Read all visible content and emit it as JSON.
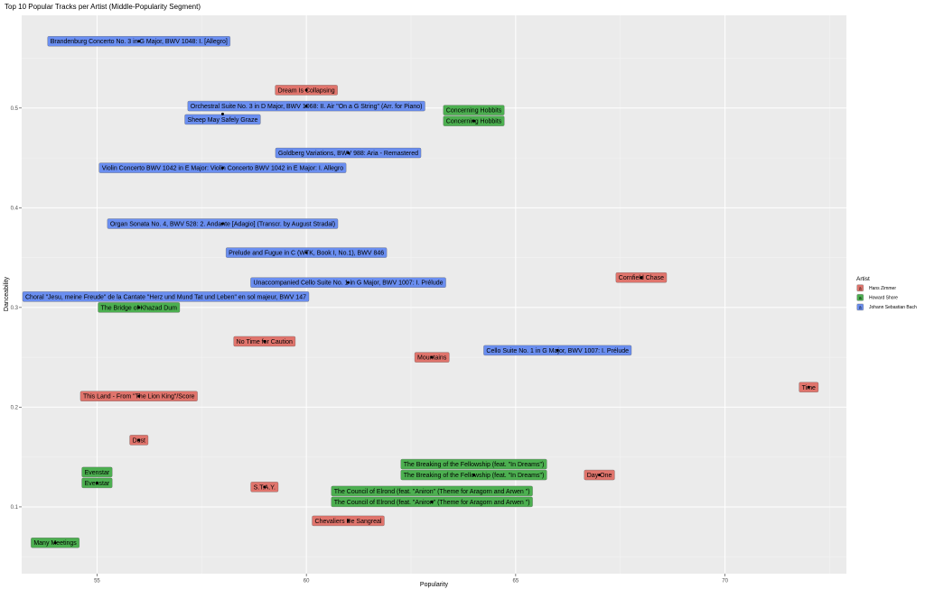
{
  "chart_data": {
    "type": "scatter",
    "title": "Top 10 Popular Tracks per Artist (Middle-Popularity Segment)",
    "xlabel": "Popularity",
    "ylabel": "Danceability",
    "xlim": [
      53.2,
      72.9
    ],
    "ylim": [
      0.033,
      0.593
    ],
    "xticks": [
      55,
      60,
      65,
      70
    ],
    "yticks": [
      0.1,
      0.2,
      0.3,
      0.4,
      0.5
    ],
    "grid": true,
    "legend": {
      "title": "Artist",
      "position": "right",
      "key_glyph": "a",
      "entries": [
        {
          "name": "Hans Zimmer",
          "color": "#e0746c"
        },
        {
          "name": "Howard Shore",
          "color": "#4caf50"
        },
        {
          "name": "Johann Sebastian Bach",
          "color": "#6a8ef0"
        }
      ]
    },
    "series": [
      {
        "name": "Hans Zimmer",
        "points": [
          {
            "x": 60,
            "y": 0.518,
            "label": "Dream Is Collapsing"
          },
          {
            "x": 68,
            "y": 0.33,
            "label": "Cornfield Chase"
          },
          {
            "x": 59,
            "y": 0.266,
            "label": "No Time for Caution"
          },
          {
            "x": 63,
            "y": 0.25,
            "label": "Mountains"
          },
          {
            "x": 56,
            "y": 0.211,
            "label": "This Land - From \"The Lion King\"/Score"
          },
          {
            "x": 72,
            "y": 0.22,
            "label": "Time"
          },
          {
            "x": 56,
            "y": 0.167,
            "label": "Dust"
          },
          {
            "x": 67,
            "y": 0.132,
            "label": "Day One"
          },
          {
            "x": 59,
            "y": 0.12,
            "label": "S.T.A.Y."
          },
          {
            "x": 61,
            "y": 0.086,
            "label": "Chevaliers De Sangreal"
          }
        ]
      },
      {
        "name": "Howard Shore",
        "points": [
          {
            "x": 64,
            "y": 0.487,
            "label": "Concerning Hobbits"
          },
          {
            "x": 64,
            "y": 0.487,
            "label": "Concerning Hobbits"
          },
          {
            "x": 56,
            "y": 0.3,
            "label": "The Bridge of Khazad Dum"
          },
          {
            "x": 55,
            "y": 0.124,
            "label": "Evenstar"
          },
          {
            "x": 55,
            "y": 0.124,
            "label": "Evenstar"
          },
          {
            "x": 64,
            "y": 0.132,
            "label": "The Breaking of the Fellowship (feat. \"In Dreams\")"
          },
          {
            "x": 64,
            "y": 0.132,
            "label": "The Breaking of the Fellowship (feat. \"In Dreams\")"
          },
          {
            "x": 63,
            "y": 0.105,
            "label": "The Council of Elrond (feat. \"Aniron\" (Theme for Aragorn and Arwen \")"
          },
          {
            "x": 63,
            "y": 0.105,
            "label": "The Council of Elrond (feat. \"Aniron\" (Theme for Aragorn and Arwen \")"
          },
          {
            "x": 54,
            "y": 0.064,
            "label": "Many Meetings"
          }
        ]
      },
      {
        "name": "Johann Sebastian Bach",
        "points": [
          {
            "x": 56,
            "y": 0.567,
            "label": "Brandenburg Concerto No. 3 in G Major, BWV 1048: I. [Allegro]"
          },
          {
            "x": 60,
            "y": 0.502,
            "label": "Orchestral Suite No. 3 in D Major, BWV 1068: II. Air \"On a G String\" (Arr. for Piano)"
          },
          {
            "x": 58,
            "y": 0.494,
            "label": "Sheep May Safely Graze"
          },
          {
            "x": 61,
            "y": 0.455,
            "label": "Goldberg Variations, BWV 988: Aria - Remastered"
          },
          {
            "x": 58,
            "y": 0.44,
            "label": "Violin Concerto BWV 1042 in E Major: Violin Concerto BWV 1042 in E Major: I. Allegro"
          },
          {
            "x": 58,
            "y": 0.384,
            "label": "Organ Sonata No. 4, BWV 528: 2. Andante [Adagio] (Transcr. by August Stradal)"
          },
          {
            "x": 60,
            "y": 0.355,
            "label": "Prelude and Fugue in C (WTK, Book I, No.1), BWV 846"
          },
          {
            "x": 61,
            "y": 0.325,
            "label": "Unaccompanied Cello Suite No. 1 in G Major, BWV 1007: I. Prélude"
          },
          {
            "x": 56,
            "y": 0.3,
            "label": "Choral \"Jesu, meine Freude\" de la Cantate \"Herz und Mund Tat und Leben\" en sol majeur, BWV 147"
          },
          {
            "x": 66,
            "y": 0.257,
            "label": "Cello Suite No. 1 in G Major, BWV 1007: I. Prélude"
          }
        ]
      }
    ]
  }
}
